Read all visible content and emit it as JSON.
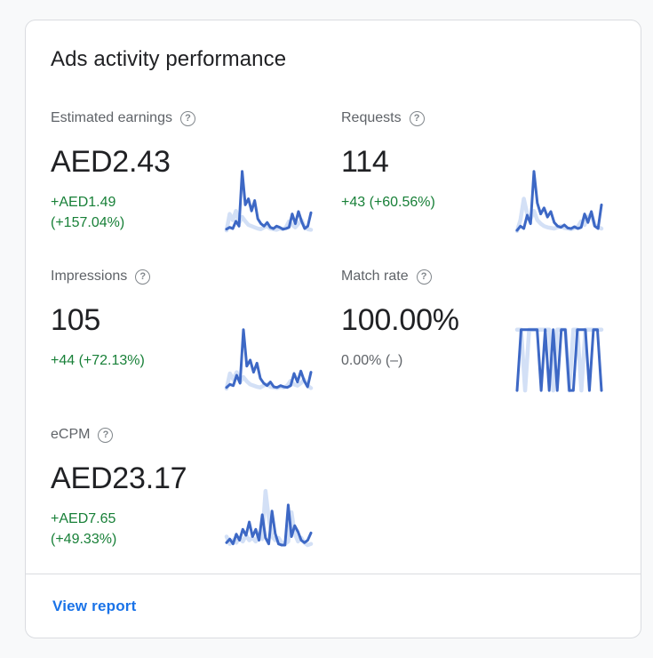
{
  "card": {
    "title": "Ads activity performance",
    "footer": {
      "view_report_label": "View report"
    }
  },
  "icons": {
    "help_glyph": "?"
  },
  "colors": {
    "spark_current": "#3d68c5",
    "spark_previous": "#d3e0f6",
    "positive_green": "#188038",
    "neutral_gray": "#5f6368",
    "link_blue": "#1a73e8"
  },
  "metrics": [
    {
      "label": "Estimated earnings",
      "value": "AED2.43",
      "delta": "+AED1.49\n(+157.04%)",
      "delta_tone": "positive"
    },
    {
      "label": "Requests",
      "value": "114",
      "delta": "+43 (+60.56%)",
      "delta_tone": "positive"
    },
    {
      "label": "Impressions",
      "value": "105",
      "delta": "+44 (+72.13%)",
      "delta_tone": "positive"
    },
    {
      "label": "Match rate",
      "value": "100.00%",
      "delta": "0.00% (–)",
      "delta_tone": "neutral"
    },
    {
      "label": "eCPM",
      "value": "AED23.17",
      "delta": "+AED7.65\n(+49.33%)",
      "delta_tone": "positive"
    }
  ],
  "chart_data": [
    {
      "metric": "Estimated earnings",
      "type": "line",
      "axes": "none (sparkline, unlabeled)",
      "y_units": "relative 0-100, estimated from pixels",
      "series": [
        {
          "name": "previous period",
          "color_key": "spark_previous",
          "values": [
            3,
            30,
            20,
            35,
            15,
            25,
            18,
            12,
            10,
            8,
            6,
            5,
            8,
            10,
            6,
            5,
            4,
            6,
            5,
            8,
            18,
            12,
            8,
            14,
            20,
            8,
            5,
            4
          ]
        },
        {
          "name": "current period",
          "color_key": "spark_current",
          "values": [
            5,
            8,
            6,
            18,
            10,
            100,
            45,
            55,
            35,
            52,
            22,
            14,
            10,
            16,
            8,
            6,
            10,
            8,
            5,
            6,
            8,
            30,
            14,
            34,
            18,
            6,
            10,
            32
          ]
        }
      ]
    },
    {
      "metric": "Requests",
      "type": "line",
      "axes": "none (sparkline, unlabeled)",
      "y_units": "relative 0-100, estimated from pixels",
      "series": [
        {
          "name": "previous period",
          "color_key": "spark_previous",
          "values": [
            2,
            20,
            55,
            30,
            22,
            35,
            20,
            14,
            10,
            8,
            7,
            6,
            8,
            10,
            7,
            6,
            5,
            7,
            9,
            18,
            12,
            25,
            30,
            12,
            8,
            6
          ]
        },
        {
          "name": "current period",
          "color_key": "spark_current",
          "values": [
            3,
            10,
            6,
            28,
            14,
            100,
            48,
            30,
            40,
            25,
            34,
            16,
            10,
            8,
            12,
            7,
            6,
            9,
            6,
            8,
            30,
            16,
            34,
            10,
            6,
            45
          ]
        }
      ]
    },
    {
      "metric": "Impressions",
      "type": "line",
      "axes": "none (sparkline, unlabeled)",
      "y_units": "relative 0-100, estimated from pixels",
      "series": [
        {
          "name": "previous period",
          "color_key": "spark_previous",
          "values": [
            3,
            28,
            18,
            30,
            14,
            22,
            15,
            10,
            8,
            6,
            5,
            8,
            10,
            6,
            5,
            4,
            6,
            5,
            8,
            16,
            10,
            8,
            12,
            18,
            8,
            4
          ]
        },
        {
          "name": "current period",
          "color_key": "spark_current",
          "values": [
            5,
            10,
            8,
            25,
            12,
            100,
            40,
            50,
            30,
            45,
            20,
            12,
            8,
            14,
            6,
            5,
            8,
            6,
            5,
            8,
            28,
            14,
            32,
            16,
            6,
            30
          ]
        }
      ]
    },
    {
      "metric": "Match rate",
      "type": "line",
      "axes": "none (sparkline, unlabeled)",
      "y_units": "relative 0-100, estimated from pixels",
      "series": [
        {
          "name": "previous period",
          "color_key": "spark_previous",
          "values": [
            100,
            100,
            0,
            100,
            100,
            100,
            100,
            100,
            100,
            0,
            100,
            100,
            100,
            0,
            100,
            100,
            0,
            100,
            100,
            100,
            100,
            100
          ]
        },
        {
          "name": "current period",
          "color_key": "spark_current",
          "values": [
            0,
            100,
            100,
            100,
            100,
            100,
            0,
            100,
            0,
            100,
            0,
            100,
            100,
            0,
            0,
            100,
            100,
            100,
            0,
            100,
            100,
            0
          ]
        }
      ]
    },
    {
      "metric": "eCPM",
      "type": "line",
      "axes": "none (sparkline, unlabeled)",
      "y_units": "relative 0-100, estimated from pixels",
      "series": [
        {
          "name": "previous period",
          "color_key": "spark_previous",
          "values": [
            20,
            8,
            14,
            10,
            18,
            12,
            22,
            14,
            18,
            12,
            26,
            16,
            95,
            50,
            20,
            14,
            18,
            10,
            8,
            12,
            60,
            25,
            12,
            18,
            10,
            6,
            8
          ]
        },
        {
          "name": "current period",
          "color_key": "spark_current",
          "values": [
            10,
            16,
            8,
            24,
            14,
            32,
            22,
            44,
            20,
            32,
            14,
            56,
            18,
            8,
            62,
            25,
            8,
            6,
            6,
            72,
            20,
            38,
            28,
            14,
            10,
            14,
            26
          ]
        }
      ]
    }
  ]
}
